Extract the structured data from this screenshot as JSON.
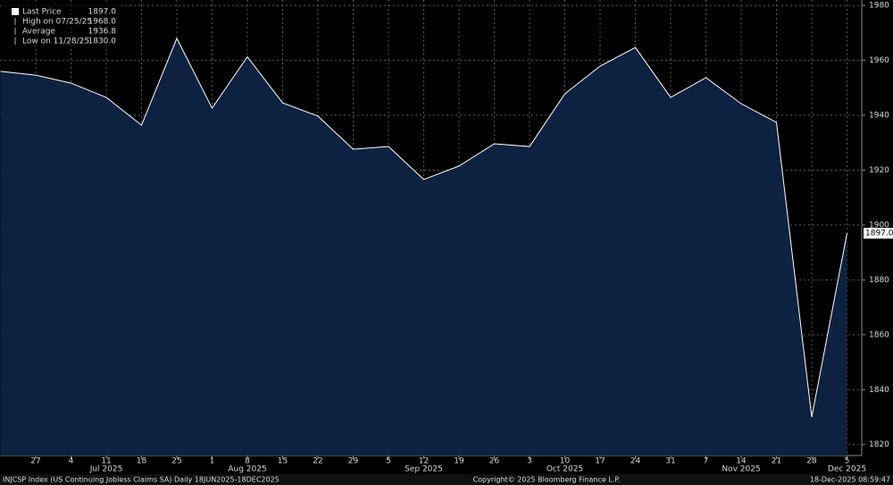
{
  "chart_data": {
    "type": "area",
    "categories": [
      null,
      "27",
      "4",
      "11",
      "18",
      "25",
      "1",
      "8",
      "15",
      "22",
      "29",
      "5",
      "12",
      "19",
      "26",
      "3",
      "10",
      "17",
      "24",
      "31",
      "7",
      "14",
      "21",
      "28",
      "5"
    ],
    "month_row": [
      null,
      null,
      null,
      "Jul 2025",
      null,
      null,
      null,
      "Aug 2025",
      null,
      null,
      null,
      null,
      "Sep 2025",
      null,
      null,
      null,
      "Oct 2025",
      null,
      null,
      null,
      null,
      "Nov 2025",
      null,
      null,
      "Dec 2025"
    ],
    "series": [
      {
        "name": "Last Price",
        "color": "#ffffff",
        "fill": "#0c2240",
        "values": [
          1956,
          1954.6,
          1951.7,
          1946.5,
          1936.4,
          1968,
          1942.6,
          1961.3,
          1944.5,
          1939.7,
          1927.6,
          1928.6,
          1916.6,
          1921.5,
          1929.6,
          1928.6,
          1947.8,
          1957.9,
          1964.7,
          1946.5,
          1953.7,
          1944.2,
          1937.4,
          1830,
          1897
        ],
        "value_labels": [
          null,
          null,
          null,
          null,
          null,
          null,
          null,
          null,
          null,
          null,
          null,
          null,
          null,
          null,
          null,
          null,
          null,
          null,
          null,
          null,
          null,
          null,
          null,
          null,
          "1897.0"
        ]
      }
    ],
    "ylim": [
      1816,
      1982
    ],
    "yticks": [
      1820,
      1840,
      1860,
      1880,
      1900,
      1920,
      1940,
      1960,
      1980
    ],
    "grid": true,
    "legend": [
      {
        "label": "Last Price",
        "value": "1897.0"
      },
      {
        "label": "High on 07/25/25",
        "value": "1968.0"
      },
      {
        "label": "Average",
        "value": "1936.8"
      },
      {
        "label": "Low on 11/28/25",
        "value": "1830.0"
      }
    ],
    "footer": {
      "left": "INJCSP Index (US Continuing Jobless Claims SA) Daily 18JUN2025-18DEC2025",
      "center": "Copyright© 2025 Bloomberg Finance L.P.",
      "right": "18-Dec-2025 08:59:47"
    }
  }
}
